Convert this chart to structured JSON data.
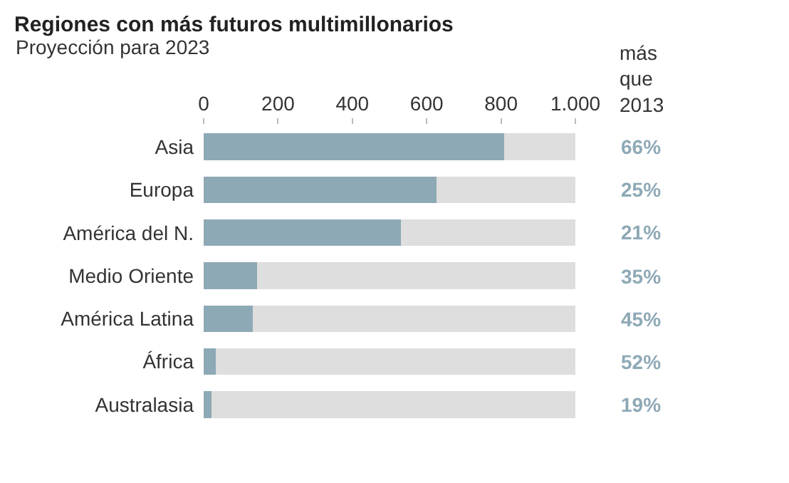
{
  "chart_data": {
    "type": "bar",
    "orientation": "horizontal",
    "stacked": true,
    "title": "Regiones con más futuros multimillonarios",
    "subtitle": "Proyección para 2023",
    "categories": [
      "Asia",
      "Europa",
      "América del N.",
      "Medio Oriente",
      "América Latina",
      "África",
      "Australasia"
    ],
    "series": [
      {
        "color": "#8ea9b6",
        "values": [
          808,
          627,
          530,
          143,
          133,
          33,
          22
        ]
      },
      {
        "color": "#dedede",
        "values": [
          192,
          373,
          470,
          857,
          867,
          967,
          978
        ]
      }
    ],
    "xlim": [
      0,
      1000
    ],
    "xticks": [
      0,
      200,
      400,
      600,
      800,
      {
        "value": 1000,
        "label": "1.000"
      }
    ],
    "annotations": [
      "más\nque\n2013",
      "66%",
      "25%",
      "21%",
      "35%",
      "45%",
      "52%",
      "19%"
    ]
  }
}
